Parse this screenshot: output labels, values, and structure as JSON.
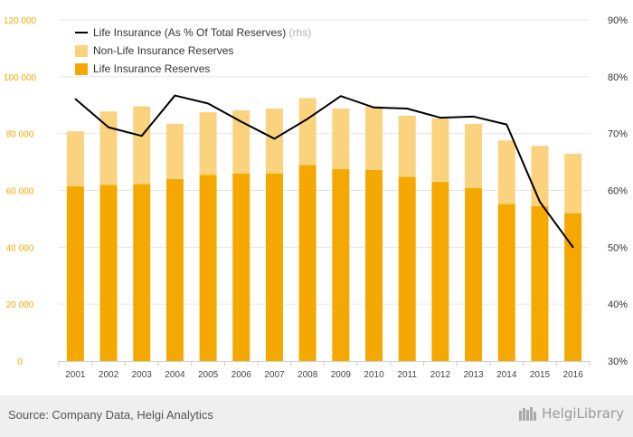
{
  "chart_data": {
    "type": "bar",
    "stacked": true,
    "categories": [
      "2001",
      "2002",
      "2003",
      "2004",
      "2005",
      "2006",
      "2007",
      "2008",
      "2009",
      "2010",
      "2011",
      "2012",
      "2013",
      "2014",
      "2015",
      "2016"
    ],
    "series": [
      {
        "name": "Life Insurance Reserves",
        "kind": "bar",
        "axis": "left",
        "color": "#f5a800",
        "values": [
          61500,
          62000,
          62200,
          64000,
          65500,
          66000,
          66000,
          69000,
          67500,
          67200,
          64800,
          63000,
          60800,
          55200,
          54500,
          52000
        ]
      },
      {
        "name": "Non-Life Insurance Reserves",
        "kind": "bar",
        "axis": "left",
        "color": "#fbd37e",
        "values": [
          19300,
          25800,
          27400,
          19400,
          22000,
          22200,
          22800,
          23500,
          21300,
          22400,
          21500,
          22300,
          22600,
          22400,
          21200,
          20900
        ]
      },
      {
        "name": "Life Insurance (As % Of Total Reserves)",
        "name_suffix": "(rhs)",
        "kind": "line",
        "axis": "right",
        "color": "#000000",
        "values": [
          76.1,
          71.1,
          69.6,
          76.7,
          75.3,
          72.1,
          69.1,
          72.6,
          76.6,
          74.6,
          74.4,
          72.8,
          73.0,
          71.6,
          58.0,
          50.0
        ]
      }
    ],
    "legend": [
      {
        "label": "Life Insurance (As % Of Total Reserves)",
        "suffix": "(rhs)",
        "swatch": "line",
        "color": "#000000"
      },
      {
        "label": "Non-Life Insurance Reserves",
        "swatch": "box",
        "color": "#fbd37e"
      },
      {
        "label": "Life Insurance Reserves",
        "swatch": "box",
        "color": "#f5a800"
      }
    ],
    "y_left": {
      "range": [
        0,
        120000
      ],
      "ticks": [
        0,
        20000,
        40000,
        60000,
        80000,
        100000,
        120000
      ],
      "tick_labels": [
        "0",
        "20 000",
        "40 000",
        "60 000",
        "80 000",
        "100 000",
        "120 000"
      ]
    },
    "y_right": {
      "range": [
        30,
        90
      ],
      "ticks": [
        30,
        40,
        50,
        60,
        70,
        80,
        90
      ],
      "tick_labels": [
        "30%",
        "40%",
        "50%",
        "60%",
        "70%",
        "80%",
        "90%"
      ]
    },
    "grid": "horizontal",
    "legend_position": "top-left"
  },
  "footer": {
    "source": "Source: Company Data, Helgi Analytics",
    "logo_text": "HelgiLibrary"
  }
}
